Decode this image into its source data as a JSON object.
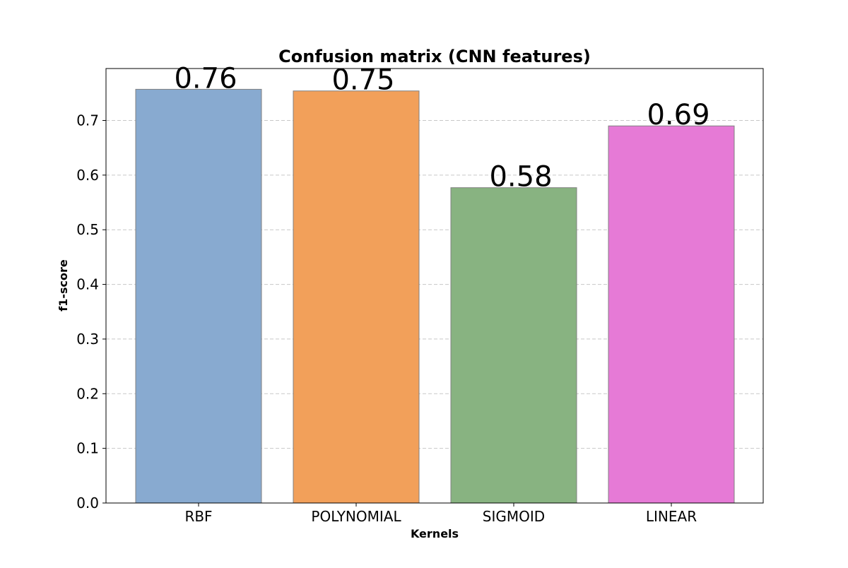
{
  "chart_data": {
    "type": "bar",
    "title": "Confusion matrix (CNN features)",
    "xlabel": "Kernels",
    "ylabel": "f1-score",
    "categories": [
      "RBF",
      "POLYNOMIAL",
      "SIGMOID",
      "LINEAR"
    ],
    "values": [
      0.757,
      0.754,
      0.577,
      0.69
    ],
    "data_labels": [
      "0.76",
      "0.75",
      "0.58",
      "0.69"
    ],
    "yticks": [
      0.0,
      0.1,
      0.2,
      0.3,
      0.4,
      0.5,
      0.6,
      0.7
    ],
    "ytick_labels": [
      "0.0",
      "0.1",
      "0.2",
      "0.3",
      "0.4",
      "0.5",
      "0.6",
      "0.7"
    ],
    "ylim": [
      0,
      0.795
    ],
    "grid": "horizontal-dashed",
    "colors": [
      "#88aad0",
      "#f2a05a",
      "#88b381",
      "#e67ad6"
    ],
    "bar_edge_color": "#808080",
    "grid_color": "#c8c8c8"
  }
}
